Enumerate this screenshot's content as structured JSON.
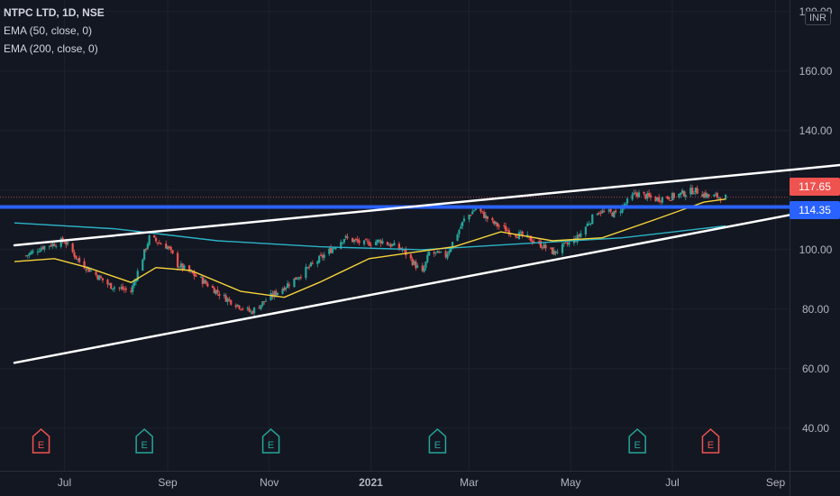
{
  "legend": {
    "title": "NTPC LTD, 1D, NSE",
    "ema50": "EMA (50, close, 0)",
    "ema200": "EMA (200, close, 0)"
  },
  "currency": "INR",
  "last_price_label": "117.65",
  "horizontal_level_label": "114.35",
  "colors": {
    "background": "#131722",
    "up": "#26a69a",
    "down": "#ef5350",
    "ema50": "#f5d33b",
    "ema200": "#2bb3c6",
    "level": "#2962ff",
    "trendline": "#ffffff"
  },
  "chart_data": {
    "type": "candlestick",
    "symbol": "NTPC LTD",
    "interval": "1D",
    "exchange": "NSE",
    "y_ticks": [
      "180.00",
      "160.00",
      "140.00",
      "120.00",
      "100.00",
      "80.00",
      "60.00",
      "40.00"
    ],
    "y_values": [
      180,
      160,
      140,
      120,
      100,
      80,
      60,
      40
    ],
    "x_ticks": [
      "Jul",
      "Sep",
      "Nov",
      "2021",
      "Mar",
      "May",
      "Jul",
      "Sep"
    ],
    "ylim": [
      31,
      183
    ],
    "grid": true,
    "anchors": [
      {
        "date": "2020-06-08",
        "price": 98
      },
      {
        "date": "2020-06-18",
        "price": 101
      },
      {
        "date": "2020-07-01",
        "price": 103
      },
      {
        "date": "2020-07-10",
        "price": 96
      },
      {
        "date": "2020-07-28",
        "price": 88
      },
      {
        "date": "2020-08-10",
        "price": 86
      },
      {
        "date": "2020-08-21",
        "price": 104
      },
      {
        "date": "2020-09-01",
        "price": 101
      },
      {
        "date": "2020-09-07",
        "price": 95
      },
      {
        "date": "2020-09-21",
        "price": 90
      },
      {
        "date": "2020-10-05",
        "price": 84
      },
      {
        "date": "2020-10-21",
        "price": 79
      },
      {
        "date": "2020-10-30",
        "price": 83
      },
      {
        "date": "2020-11-16",
        "price": 90
      },
      {
        "date": "2020-11-27",
        "price": 95
      },
      {
        "date": "2020-12-08",
        "price": 100
      },
      {
        "date": "2020-12-16",
        "price": 104
      },
      {
        "date": "2020-12-28",
        "price": 102
      },
      {
        "date": "2021-01-07",
        "price": 103
      },
      {
        "date": "2021-01-20",
        "price": 100
      },
      {
        "date": "2021-02-01",
        "price": 92
      },
      {
        "date": "2021-02-05",
        "price": 99
      },
      {
        "date": "2021-02-15",
        "price": 98
      },
      {
        "date": "2021-02-26",
        "price": 110
      },
      {
        "date": "2021-03-05",
        "price": 114
      },
      {
        "date": "2021-03-15",
        "price": 109
      },
      {
        "date": "2021-03-26",
        "price": 106
      },
      {
        "date": "2021-04-09",
        "price": 103
      },
      {
        "date": "2021-04-21",
        "price": 99
      },
      {
        "date": "2021-05-05",
        "price": 104
      },
      {
        "date": "2021-05-17",
        "price": 113
      },
      {
        "date": "2021-05-28",
        "price": 112
      },
      {
        "date": "2021-06-09",
        "price": 119
      },
      {
        "date": "2021-06-21",
        "price": 117
      },
      {
        "date": "2021-07-02",
        "price": 118
      },
      {
        "date": "2021-07-14",
        "price": 120
      },
      {
        "date": "2021-07-23",
        "price": 118
      },
      {
        "date": "2021-08-02",
        "price": 117.65
      }
    ],
    "ema50": [
      {
        "date": "2020-06-01",
        "value": 96
      },
      {
        "date": "2020-06-25",
        "value": 97
      },
      {
        "date": "2020-07-15",
        "value": 94
      },
      {
        "date": "2020-08-10",
        "value": 89
      },
      {
        "date": "2020-08-25",
        "value": 94
      },
      {
        "date": "2020-09-15",
        "value": 93
      },
      {
        "date": "2020-10-15",
        "value": 86
      },
      {
        "date": "2020-11-10",
        "value": 84
      },
      {
        "date": "2020-12-01",
        "value": 89
      },
      {
        "date": "2020-12-31",
        "value": 97
      },
      {
        "date": "2021-01-25",
        "value": 99
      },
      {
        "date": "2021-02-20",
        "value": 101
      },
      {
        "date": "2021-03-20",
        "value": 106
      },
      {
        "date": "2021-04-20",
        "value": 103
      },
      {
        "date": "2021-05-20",
        "value": 104
      },
      {
        "date": "2021-06-20",
        "value": 110
      },
      {
        "date": "2021-07-20",
        "value": 116
      },
      {
        "date": "2021-08-02",
        "value": 117
      }
    ],
    "ema200": [
      {
        "date": "2020-06-01",
        "value": 109
      },
      {
        "date": "2020-08-01",
        "value": 107
      },
      {
        "date": "2020-10-01",
        "value": 103
      },
      {
        "date": "2020-12-01",
        "value": 101
      },
      {
        "date": "2021-02-01",
        "value": 100
      },
      {
        "date": "2021-04-01",
        "value": 102
      },
      {
        "date": "2021-06-01",
        "value": 104
      },
      {
        "date": "2021-08-02",
        "value": 108
      }
    ],
    "horizontal_level": 114.35,
    "last_price": 117.65,
    "trendlines": [
      {
        "name": "upper",
        "from": {
          "date": "2020-06-01",
          "price": 101.5
        },
        "to": {
          "date": "2021-10-20",
          "price": 129
        }
      },
      {
        "name": "lower",
        "from": {
          "date": "2020-06-01",
          "price": 62
        },
        "to": {
          "date": "2021-10-20",
          "price": 116
        }
      }
    ],
    "events": [
      {
        "date": "2020-06-17",
        "type": "E",
        "color": "#ef5350"
      },
      {
        "date": "2020-08-18",
        "type": "E",
        "color": "#26a69a"
      },
      {
        "date": "2020-11-02",
        "type": "E",
        "color": "#26a69a"
      },
      {
        "date": "2021-02-10",
        "type": "E",
        "color": "#26a69a"
      },
      {
        "date": "2021-06-10",
        "type": "E",
        "color": "#26a69a"
      },
      {
        "date": "2021-07-24",
        "type": "E",
        "color": "#ef5350"
      }
    ]
  }
}
